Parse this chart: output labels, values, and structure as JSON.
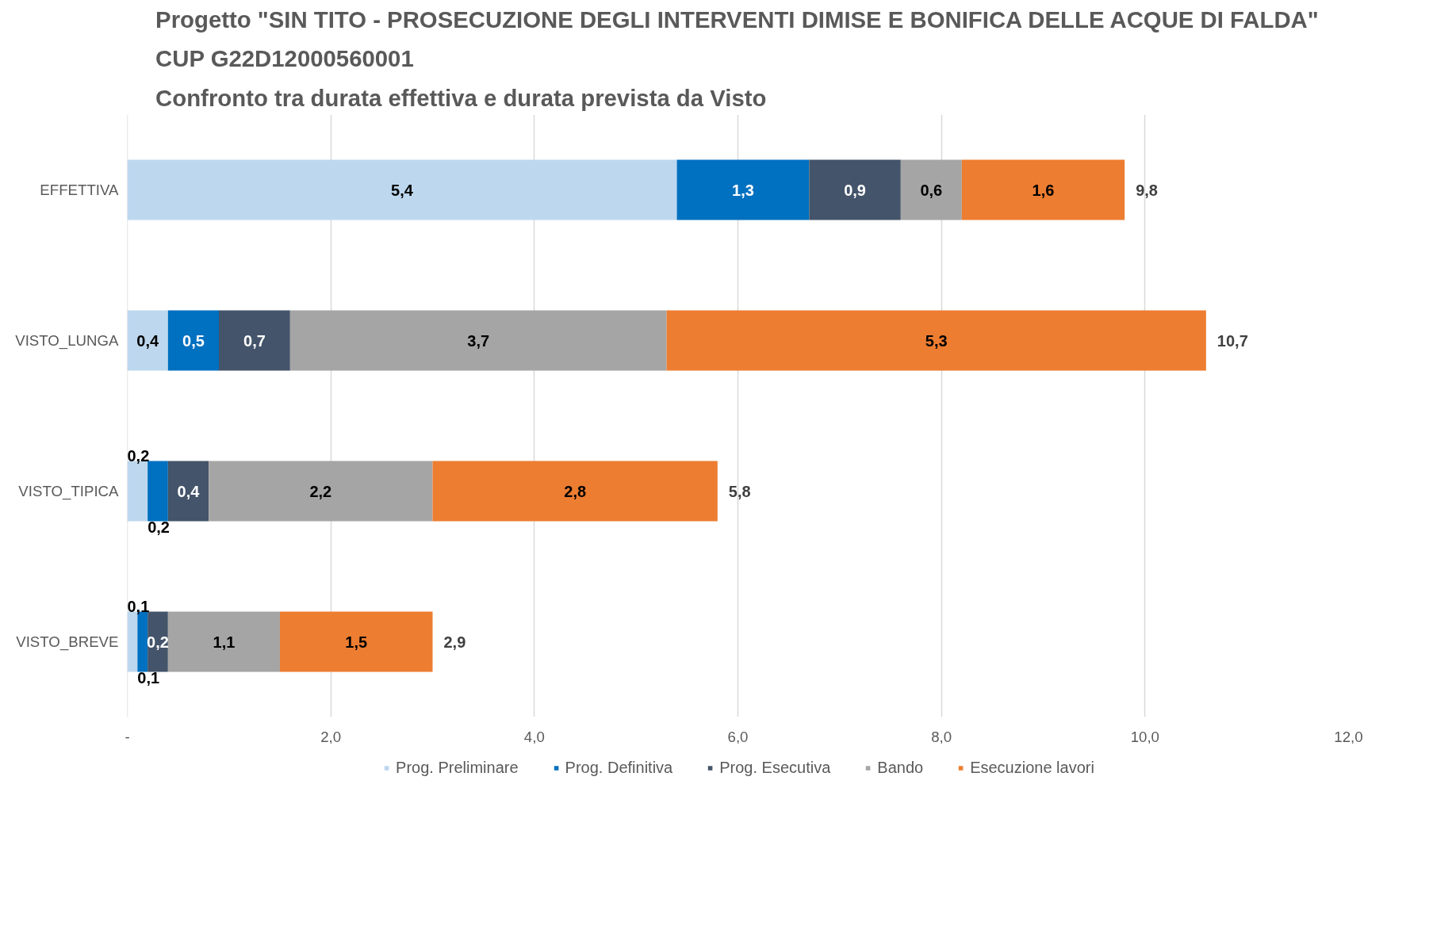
{
  "chart_data": {
    "type": "bar",
    "orientation": "horizontal",
    "stacked": true,
    "title": "Progetto \"SIN TITO - PROSECUZIONE DEGLI INTERVENTI DIMISE E BONIFICA DELLE ACQUE DI FALDA\"",
    "subtitle": "CUP G22D12000560001\nConfronto tra durata effettiva e durata prevista da Visto",
    "categories": [
      "EFFETTIVA",
      "VISTO_LUNGA",
      "VISTO_TIPICA",
      "VISTO_BREVE"
    ],
    "series": [
      {
        "name": "Prog. Preliminare",
        "color": "#bdd7ee",
        "values": [
          5.4,
          0.4,
          0.2,
          0.1
        ],
        "value_labels": [
          "5,4",
          "0,4",
          "0,2",
          "0,1"
        ]
      },
      {
        "name": "Prog. Definitiva",
        "color": "#0070c0",
        "values": [
          1.3,
          0.5,
          0.2,
          0.1
        ],
        "value_labels": [
          "1,3",
          "0,5",
          "0,2",
          "0,1"
        ]
      },
      {
        "name": "Prog. Esecutiva",
        "color": "#44546a",
        "values": [
          0.9,
          0.7,
          0.4,
          0.2
        ],
        "value_labels": [
          "0,9",
          "0,7",
          "0,4",
          "0,2"
        ]
      },
      {
        "name": "Bando",
        "color": "#a5a5a5",
        "values": [
          0.6,
          3.7,
          2.2,
          1.1
        ],
        "value_labels": [
          "0,6",
          "3,7",
          "2,2",
          "1,1"
        ]
      },
      {
        "name": "Esecuzione lavori",
        "color": "#ed7d31",
        "values": [
          1.6,
          5.3,
          2.8,
          1.5
        ],
        "value_labels": [
          "1,6",
          "5,3",
          "2,8",
          "1,5"
        ]
      }
    ],
    "totals": [
      "9,8",
      "10,7",
      "5,8",
      "2,9"
    ],
    "xlim": [
      0,
      12
    ],
    "xticks": [
      {
        "value": 0,
        "label": "-"
      },
      {
        "value": 2,
        "label": "2,0"
      },
      {
        "value": 4,
        "label": "4,0"
      },
      {
        "value": 6,
        "label": "6,0"
      },
      {
        "value": 8,
        "label": "8,0"
      },
      {
        "value": 10,
        "label": "10,0"
      },
      {
        "value": 12,
        "label": "12,0"
      }
    ],
    "grid": "x",
    "legend": "bottom"
  }
}
